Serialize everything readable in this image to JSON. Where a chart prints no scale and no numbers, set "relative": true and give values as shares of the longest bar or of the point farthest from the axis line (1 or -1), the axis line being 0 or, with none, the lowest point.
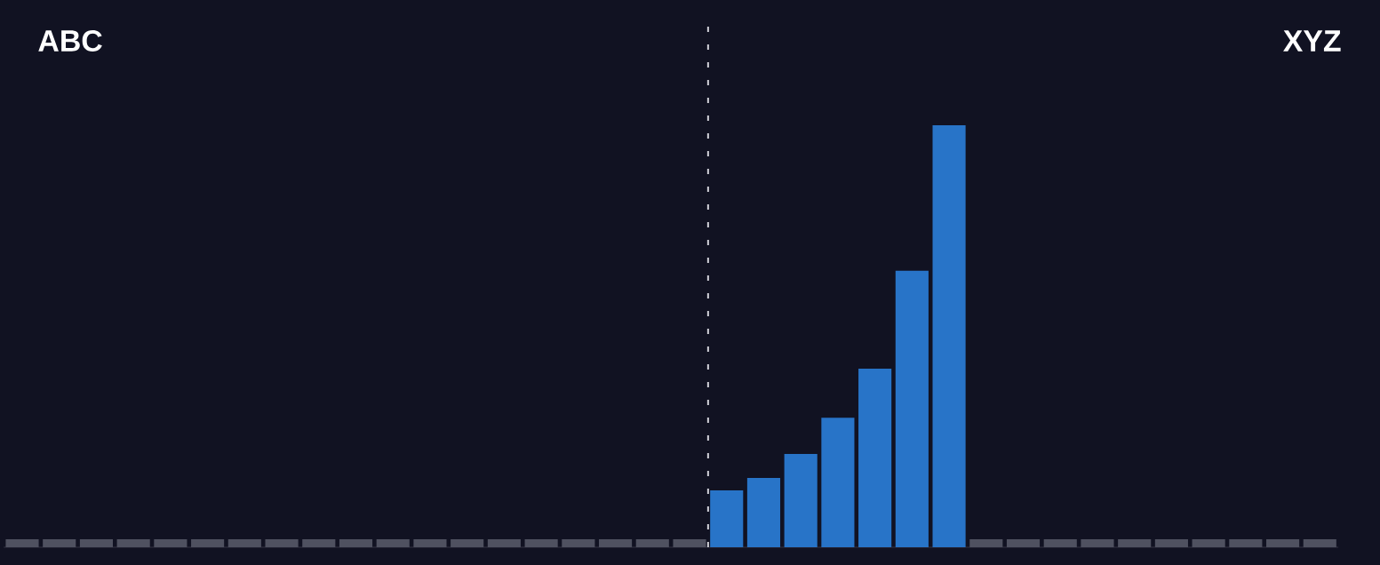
{
  "chart_data": {
    "type": "bar",
    "relative": true,
    "categories": [
      null,
      null,
      null,
      null,
      null,
      null,
      null,
      null,
      null,
      null,
      null,
      null,
      null,
      null,
      null,
      null,
      null,
      null,
      null,
      null,
      null,
      null,
      null,
      null,
      null,
      null,
      null,
      null,
      null,
      null,
      null,
      null,
      null,
      null,
      null,
      null
    ],
    "values": [
      0.019,
      0.019,
      0.019,
      0.019,
      0.019,
      0.019,
      0.019,
      0.019,
      0.019,
      0.019,
      0.019,
      0.019,
      0.019,
      0.019,
      0.019,
      0.019,
      0.019,
      0.019,
      0.019,
      0.135,
      0.164,
      0.221,
      0.307,
      0.423,
      0.655,
      1,
      0.019,
      0.019,
      0.019,
      0.019,
      0.019,
      0.019,
      0.019,
      0.019,
      0.019,
      0.019
    ],
    "colors": [
      "#4f5160",
      "#4f5160",
      "#4f5160",
      "#4f5160",
      "#4f5160",
      "#4f5160",
      "#4f5160",
      "#4f5160",
      "#4f5160",
      "#4f5160",
      "#4f5160",
      "#4f5160",
      "#4f5160",
      "#4f5160",
      "#4f5160",
      "#4f5160",
      "#4f5160",
      "#4f5160",
      "#4f5160",
      "#2874c8",
      "#2874c8",
      "#2874c8",
      "#2874c8",
      "#2874c8",
      "#2874c8",
      "#2874c8",
      "#4f5160",
      "#4f5160",
      "#4f5160",
      "#4f5160",
      "#4f5160",
      "#4f5160",
      "#4f5160",
      "#4f5160",
      "#4f5160",
      "#4f5160"
    ],
    "annotations": [
      "ABC",
      "XYZ"
    ]
  }
}
